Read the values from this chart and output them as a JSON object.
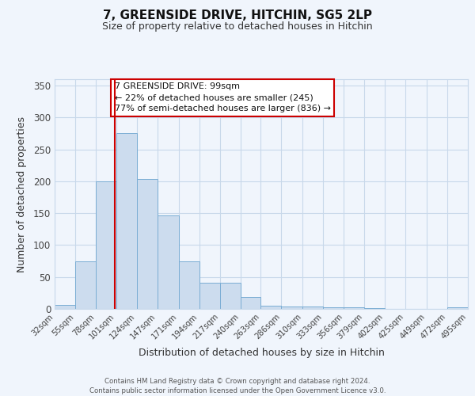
{
  "title": "7, GREENSIDE DRIVE, HITCHIN, SG5 2LP",
  "subtitle": "Size of property relative to detached houses in Hitchin",
  "xlabel": "Distribution of detached houses by size in Hitchin",
  "ylabel": "Number of detached properties",
  "bar_color": "#ccdcee",
  "bar_edge_color": "#7aadd4",
  "background_color": "#f0f5fc",
  "grid_color": "#c8d8ea",
  "vline_x": 99,
  "vline_color": "#cc0000",
  "bin_edges": [
    32,
    55,
    78,
    101,
    124,
    147,
    171,
    194,
    217,
    240,
    263,
    286,
    310,
    333,
    356,
    379,
    402,
    425,
    449,
    472,
    495
  ],
  "bar_heights": [
    6,
    74,
    200,
    275,
    204,
    146,
    74,
    41,
    41,
    19,
    5,
    4,
    4,
    2,
    2,
    1,
    0,
    0,
    0,
    2
  ],
  "ylim": [
    0,
    360
  ],
  "yticks": [
    0,
    50,
    100,
    150,
    200,
    250,
    300,
    350
  ],
  "annotation_title": "7 GREENSIDE DRIVE: 99sqm",
  "annotation_line2": "← 22% of detached houses are smaller (245)",
  "annotation_line3": "77% of semi-detached houses are larger (836) →",
  "annotation_box_color": "#ffffff",
  "annotation_box_edge": "#cc0000",
  "footer_line1": "Contains HM Land Registry data © Crown copyright and database right 2024.",
  "footer_line2": "Contains public sector information licensed under the Open Government Licence v3.0."
}
